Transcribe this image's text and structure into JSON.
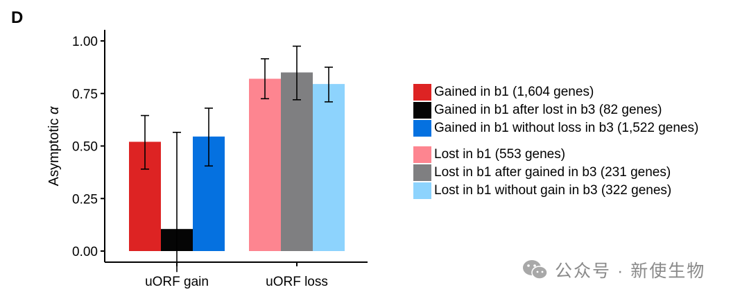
{
  "panel_label": "D",
  "chart_data": {
    "type": "bar",
    "title": "",
    "xlabel": "",
    "ylabel": "Asymptotic α",
    "ylim": [
      -0.1,
      1.05
    ],
    "yticks": [
      0.0,
      0.25,
      0.5,
      0.75,
      1.0
    ],
    "ytick_labels": [
      "0.00",
      "0.25",
      "0.50",
      "0.75",
      "1.00"
    ],
    "categories": [
      "uORF gain",
      "uORF loss"
    ],
    "groups": [
      {
        "category": "uORF gain",
        "bars": [
          {
            "series": "Gained in b1 (1,604 genes)",
            "value": 0.52,
            "err_low": 0.39,
            "err_high": 0.645,
            "color": "#dd2323"
          },
          {
            "series": "Gained in b1 after lost in b3 (82 genes)",
            "value": 0.105,
            "err_low": -0.1,
            "err_high": 0.565,
            "color": "#050505"
          },
          {
            "series": "Gained in b1 without loss in b3 (1,522 genes)",
            "value": 0.545,
            "err_low": 0.405,
            "err_high": 0.68,
            "color": "#0571e0"
          }
        ]
      },
      {
        "category": "uORF loss",
        "bars": [
          {
            "series": "Lost in b1 (553 genes)",
            "value": 0.82,
            "err_low": 0.725,
            "err_high": 0.915,
            "color": "#fd8590"
          },
          {
            "series": "Lost in b1 after gained in b3 (231 genes)",
            "value": 0.85,
            "err_low": 0.72,
            "err_high": 0.975,
            "color": "#7f7f81"
          },
          {
            "series": "Lost in b1 without gain in b3 (322 genes)",
            "value": 0.795,
            "err_low": 0.71,
            "err_high": 0.875,
            "color": "#8dd3fd"
          }
        ]
      }
    ],
    "legend": [
      [
        {
          "label": "Gained in b1 (1,604 genes)",
          "color": "#dd2323"
        },
        {
          "label": "Gained in b1 after lost in b3 (82 genes)",
          "color": "#050505"
        },
        {
          "label": "Gained in b1 without loss in b3 (1,522 genes)",
          "color": "#0571e0"
        }
      ],
      [
        {
          "label": "Lost in b1 (553 genes)",
          "color": "#fd8590"
        },
        {
          "label": "Lost in b1 after gained in b3 (231 genes)",
          "color": "#7f7f81"
        },
        {
          "label": "Lost in b1 without gain in b3 (322 genes)",
          "color": "#8dd3fd"
        }
      ]
    ],
    "legend_position": "right",
    "grid": false
  },
  "watermark": {
    "text": "公众号 · 新使生物",
    "icon": "wechat-icon"
  }
}
